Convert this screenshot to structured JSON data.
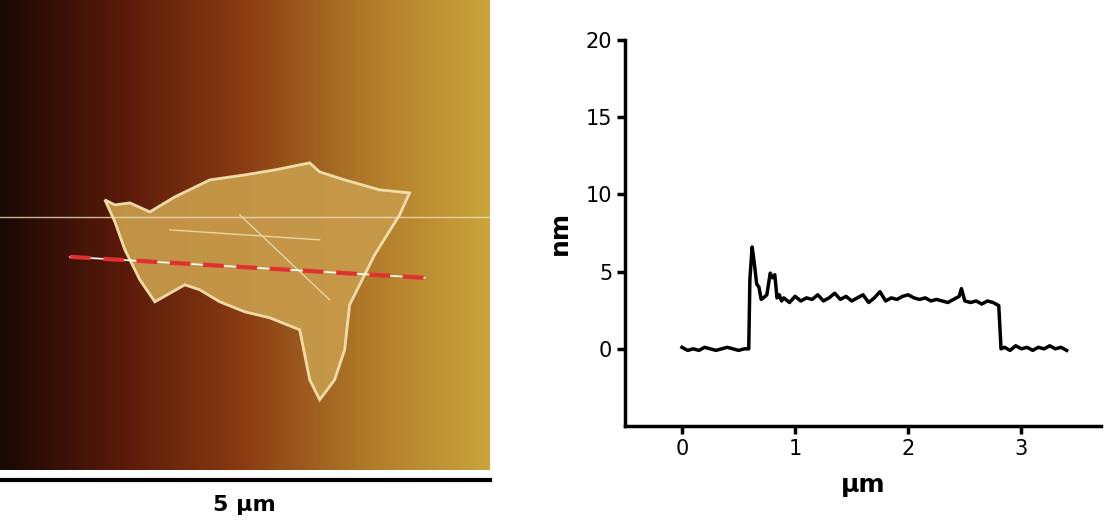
{
  "chart_data": [
    {
      "type": "image",
      "label": "5 µm"
    },
    {
      "type": "line",
      "xlabel": "µm",
      "ylabel": "nm",
      "color": "#000000",
      "x": [
        0.0,
        0.05,
        0.1,
        0.15,
        0.2,
        0.25,
        0.3,
        0.35,
        0.4,
        0.45,
        0.5,
        0.55,
        0.59,
        0.6,
        0.62,
        0.64,
        0.66,
        0.68,
        0.7,
        0.72,
        0.75,
        0.78,
        0.8,
        0.82,
        0.84,
        0.86,
        0.88,
        0.9,
        0.95,
        1.0,
        1.05,
        1.1,
        1.15,
        1.2,
        1.25,
        1.3,
        1.35,
        1.4,
        1.45,
        1.5,
        1.55,
        1.6,
        1.65,
        1.7,
        1.75,
        1.8,
        1.85,
        1.9,
        1.95,
        2.0,
        2.05,
        2.1,
        2.15,
        2.2,
        2.25,
        2.3,
        2.35,
        2.4,
        2.45,
        2.47,
        2.5,
        2.55,
        2.6,
        2.65,
        2.7,
        2.75,
        2.8,
        2.82,
        2.85,
        2.9,
        2.95,
        3.0,
        3.05,
        3.1,
        3.15,
        3.2,
        3.25,
        3.3,
        3.35,
        3.4
      ],
      "values": [
        0.1,
        -0.1,
        0.0,
        -0.1,
        0.1,
        0.0,
        -0.1,
        0.0,
        0.1,
        0.0,
        -0.1,
        0.0,
        0.0,
        4.5,
        6.6,
        5.5,
        4.2,
        4.0,
        3.2,
        3.3,
        3.5,
        4.9,
        4.6,
        4.8,
        3.3,
        3.5,
        3.1,
        3.3,
        3.0,
        3.4,
        3.1,
        3.3,
        3.2,
        3.5,
        3.1,
        3.3,
        3.6,
        3.2,
        3.4,
        3.1,
        3.3,
        3.5,
        3.0,
        3.3,
        3.7,
        3.1,
        3.3,
        3.2,
        3.4,
        3.5,
        3.3,
        3.2,
        3.3,
        3.1,
        3.2,
        3.1,
        3.0,
        3.2,
        3.4,
        3.9,
        3.1,
        3.0,
        3.1,
        2.9,
        3.1,
        3.0,
        2.8,
        0.0,
        0.1,
        -0.1,
        0.2,
        0.0,
        0.1,
        -0.1,
        0.1,
        0.0,
        0.2,
        0.0,
        0.1,
        -0.1
      ],
      "xlim": [
        -0.5,
        3.7
      ],
      "ylim": [
        -5,
        20
      ],
      "xticks": [
        0,
        1,
        2,
        3
      ],
      "yticks": [
        0,
        5,
        10,
        15,
        20
      ]
    }
  ]
}
